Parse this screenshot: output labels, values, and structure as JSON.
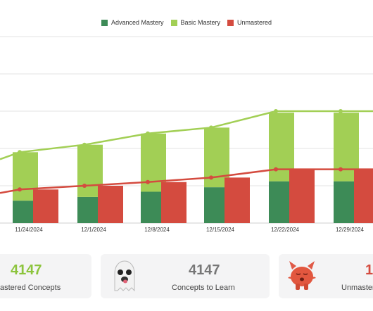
{
  "chart_data": {
    "type": "bar",
    "categories": [
      "11/24/2024",
      "12/1/2024",
      "12/8/2024",
      "12/15/2024",
      "12/22/2024",
      "12/29/2024"
    ],
    "series": [
      {
        "name": "Advanced Mastery",
        "kind": "bar",
        "color": "#3d8b57",
        "values": [
          30,
          35,
          42,
          48,
          56,
          56
        ]
      },
      {
        "name": "Basic Mastery",
        "kind": "bar",
        "color": "#a2cf55",
        "values": [
          65,
          70,
          78,
          80,
          92,
          92
        ]
      },
      {
        "name": "Unmastered",
        "kind": "bar",
        "color": "#d44b3f",
        "values": [
          45,
          50,
          55,
          61,
          72,
          72
        ]
      }
    ],
    "lines": [
      {
        "name": "Basic Mastery",
        "color": "#a2cf55",
        "values": [
          95,
          105,
          120,
          128,
          150,
          150
        ]
      },
      {
        "name": "Unmastered",
        "color": "#d44b3f",
        "values": [
          45,
          50,
          55,
          61,
          72,
          72
        ]
      }
    ],
    "ylim": [
      0,
      250
    ],
    "grid": true,
    "legend_position": "top-center"
  },
  "legend": [
    {
      "label": "Advanced Mastery",
      "color": "#3d8b57"
    },
    {
      "label": "Basic Mastery",
      "color": "#a2cf55"
    },
    {
      "label": "Unmastered",
      "color": "#d44b3f"
    }
  ],
  "cards": {
    "mastered": {
      "value": "4147",
      "label": "astered Concepts",
      "color": "#8cc43c"
    },
    "to_learn": {
      "value": "4147",
      "label": "Concepts to Learn",
      "color": "#777777"
    },
    "unmastered": {
      "value": "1",
      "label": "Unmaster",
      "color": "#d44b3f"
    }
  }
}
